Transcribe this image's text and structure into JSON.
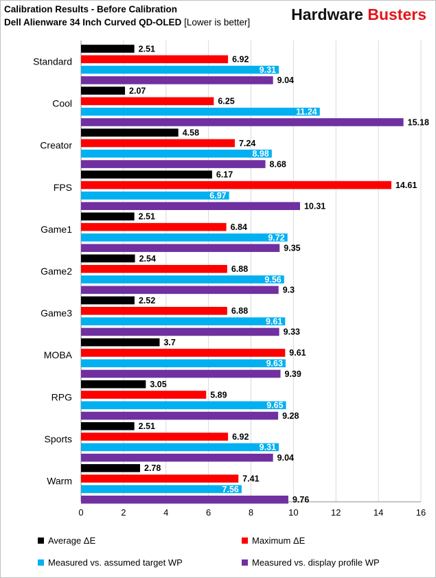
{
  "title": "Calibration Results - Before Calibration",
  "subtitle_bold": "Dell Alienware 34 Inch Curved QD-OLED",
  "subtitle_note": "[Lower is better]",
  "brand": {
    "part1": "Hardware",
    "part2": "Busters"
  },
  "colors": {
    "average": "#000000",
    "maximum": "#ff0000",
    "target_wp": "#00b0f0",
    "profile_wp": "#7030a0",
    "grid": "#d9d9d9"
  },
  "legend": {
    "average": "Average ΔE",
    "maximum": "Maximum ΔE",
    "target_wp": "Measured vs. assumed target WP",
    "profile_wp": "Measured vs. display profile WP"
  },
  "chart_data": {
    "type": "bar",
    "orientation": "horizontal",
    "title": "Calibration Results - Before Calibration",
    "subtitle": "Dell Alienware 34 Inch Curved QD-OLED [Lower is better]",
    "xlim": [
      0,
      16
    ],
    "xticks": [
      0,
      2,
      4,
      6,
      8,
      10,
      12,
      14,
      16
    ],
    "grid": true,
    "legend_position": "bottom",
    "categories": [
      "Standard",
      "Cool",
      "Creator",
      "FPS",
      "Game1",
      "Game2",
      "Game3",
      "MOBA",
      "RPG",
      "Sports",
      "Warm"
    ],
    "series": [
      {
        "name": "Average ΔE",
        "key": "average",
        "values": [
          2.51,
          2.07,
          4.58,
          6.17,
          2.51,
          2.54,
          2.52,
          3.7,
          3.05,
          2.51,
          2.78
        ],
        "labels": [
          "2.51",
          "2.07",
          "4.58",
          "6.17",
          "2.51",
          "2.54",
          "2.52",
          "3.7",
          "3.05",
          "2.51",
          "2.78"
        ]
      },
      {
        "name": "Maximum ΔE",
        "key": "maximum",
        "values": [
          6.92,
          6.25,
          7.24,
          14.61,
          6.84,
          6.88,
          6.88,
          9.61,
          5.89,
          6.92,
          7.41
        ],
        "labels": [
          "6.92",
          "6.25",
          "7.24",
          "14.61",
          "6.84",
          "6.88",
          "6.88",
          "9.61",
          "5.89",
          "6.92",
          "7.41"
        ]
      },
      {
        "name": "Measured vs. assumed target WP",
        "key": "target_wp",
        "values": [
          9.31,
          11.24,
          8.98,
          6.97,
          9.72,
          9.56,
          9.61,
          9.63,
          9.65,
          9.31,
          7.56
        ],
        "labels": [
          "9.31",
          "11.24",
          "8.98",
          "6.97",
          "9.72",
          "9.56",
          "9.61",
          "9.63",
          "9.65",
          "9.31",
          "7.56"
        ]
      },
      {
        "name": "Measured vs. display profile WP",
        "key": "profile_wp",
        "values": [
          9.04,
          15.18,
          8.68,
          10.31,
          9.35,
          9.3,
          9.33,
          9.39,
          9.28,
          9.04,
          9.76
        ],
        "labels": [
          "9.04",
          "15.18",
          "8.68",
          "10.31",
          "9.35",
          "9.3",
          "9.33",
          "9.39",
          "9.28",
          "9.04",
          "9.76"
        ]
      }
    ]
  }
}
